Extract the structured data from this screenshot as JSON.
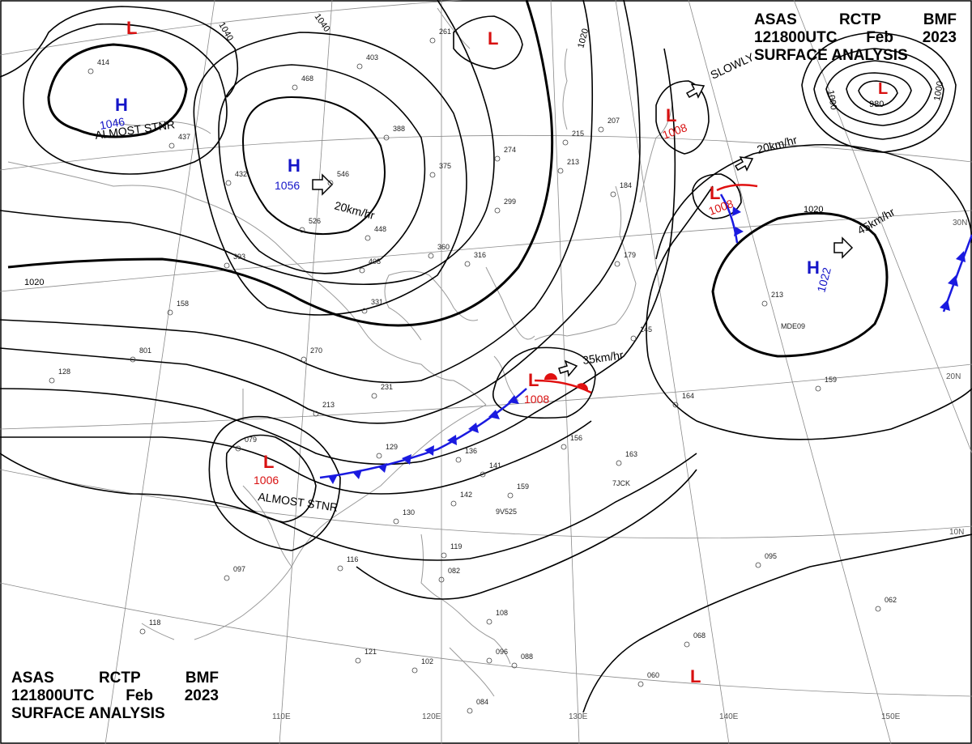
{
  "header": {
    "agency": "ASAS",
    "station": "RCTP",
    "product": "BMF",
    "time": "121800UTC",
    "month": "Feb",
    "year": "2023",
    "title": "SURFACE ANALYSIS"
  },
  "colors": {
    "high": "#1515c8",
    "low": "#d81010",
    "cold_front": "#1a1ae0",
    "warm_front": "#e01010",
    "isobar": "#000000",
    "grid": "#8a8a8a",
    "coast": "#9a9a9a"
  },
  "pressure_centers": [
    {
      "type": "H",
      "value": "1046",
      "note": "ALMOST STNR"
    },
    {
      "type": "H",
      "value": "1056",
      "motion": "20km/hr"
    },
    {
      "type": "H",
      "value": "1022",
      "motion": "45km/hr"
    },
    {
      "type": "L",
      "value": "1008",
      "motion": "SLOWLY"
    },
    {
      "type": "L",
      "value": "1008",
      "motion": "20km/hr"
    },
    {
      "type": "L",
      "value": "1008",
      "motion": "35km/hr"
    },
    {
      "type": "L",
      "value": "1006",
      "note": "ALMOST STNR"
    },
    {
      "type": "L",
      "value": "980"
    },
    {
      "type": "L",
      "value": ""
    },
    {
      "type": "L",
      "value": ""
    },
    {
      "type": "L",
      "value": ""
    }
  ],
  "isobar_labels": [
    "1040",
    "1040",
    "1020",
    "1020",
    "1020",
    "1000",
    "1000"
  ],
  "longitude_labels": [
    "110E",
    "120E",
    "130E",
    "140E",
    "150E"
  ],
  "latitude_labels": [
    "30N",
    "20N",
    "10N"
  ],
  "ship_ids": [
    "MDE09",
    "7JCK",
    "9V525"
  ],
  "obs_values": [
    "414",
    "468",
    "437",
    "432",
    "546",
    "526",
    "448",
    "403",
    "261",
    "388",
    "375",
    "274",
    "299",
    "215",
    "213",
    "207",
    "184",
    "179",
    "316",
    "360",
    "393",
    "408",
    "331",
    "158",
    "801",
    "128",
    "270",
    "231",
    "213",
    "079",
    "129",
    "136",
    "141",
    "142",
    "159",
    "130",
    "097",
    "116",
    "118",
    "119",
    "082",
    "102",
    "121",
    "108",
    "096",
    "088",
    "084",
    "145",
    "156",
    "163",
    "164",
    "159",
    "213",
    "095",
    "068",
    "062",
    "060"
  ]
}
